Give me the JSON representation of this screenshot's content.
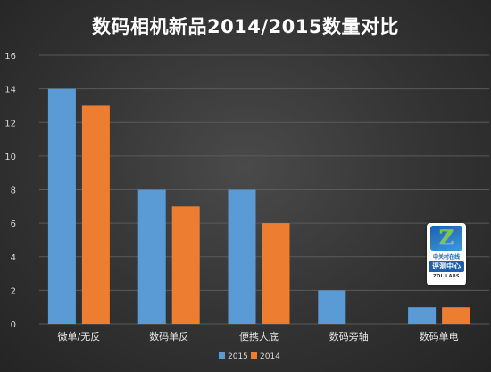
{
  "chart_data": {
    "type": "bar",
    "title": "数码相机新品2014/2015数量对比",
    "categories": [
      "微单/无反",
      "数码单反",
      "便携大底",
      "数码旁轴",
      "数码单电"
    ],
    "series": [
      {
        "name": "2015",
        "values": [
          14,
          8,
          8,
          2,
          1
        ],
        "color": "#5b9bd5"
      },
      {
        "name": "2014",
        "values": [
          13,
          7,
          6,
          0,
          1
        ],
        "color": "#ed7d31"
      }
    ],
    "ylim": [
      0,
      16
    ],
    "yticks": [
      0,
      2,
      4,
      6,
      8,
      10,
      12,
      14,
      16
    ],
    "grid": true,
    "legend": "bottom"
  },
  "badge": {
    "logo_letter": "Z",
    "line1": "中关村在线",
    "line2": "评测中心",
    "line3": "ZOL LABS"
  }
}
